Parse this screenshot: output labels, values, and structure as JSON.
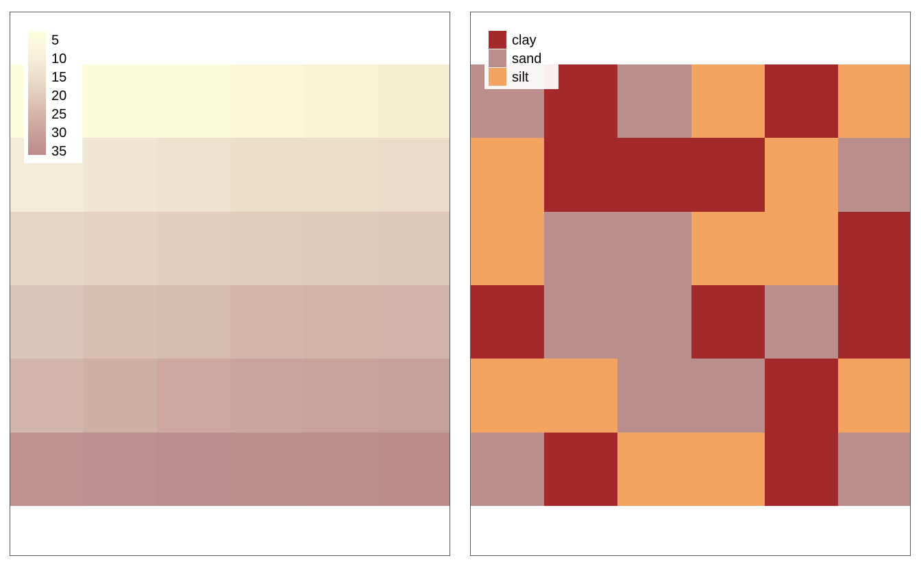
{
  "left_map": {
    "legend": {
      "labels": [
        "5",
        "10",
        "15",
        "20",
        "25",
        "30",
        "35"
      ],
      "ramp_colors": [
        "#fefee0",
        "#f8f3dc",
        "#eee3cf",
        "#e3cdbd",
        "#d4b5aa",
        "#c89f99",
        "#bc8b8c"
      ]
    },
    "rows": [
      [
        "#fdfddf",
        "#fcfcdc",
        "#fcfbdb",
        "#f9f6d9",
        "#f7f2d6",
        "#f4efd3"
      ],
      [
        "#f2ecd8",
        "#efe6d4",
        "#ede2cd",
        "#ebdfca",
        "#eadec9",
        "#e9dbc7"
      ],
      [
        "#e6d6c5",
        "#e5d2c2",
        "#e2cfbe",
        "#e0ccbb",
        "#dfcbb9",
        "#ddc8b7"
      ],
      [
        "#dcc5ba",
        "#d8bfb2",
        "#d5baae",
        "#d3b7aa",
        "#d2b4a7",
        "#d0b3a9"
      ],
      [
        "#d2b5ab",
        "#cfb0a4",
        "#cca8a0",
        "#c8a49e",
        "#c7a39c",
        "#c5a19d"
      ],
      [
        "#bf9190",
        "#bc8f90",
        "#ba8d8e",
        "#bb8e8e",
        "#bc8d8d",
        "#bc8b8c"
      ]
    ]
  },
  "right_map": {
    "legend": {
      "items": [
        {
          "label": "clay",
          "color": "#a3292a"
        },
        {
          "label": "sand",
          "color": "#bb8e8e"
        },
        {
          "label": "silt",
          "color": "#f3a461"
        }
      ]
    },
    "rows": [
      [
        "sand",
        "clay",
        "sand",
        "silt",
        "clay",
        "silt"
      ],
      [
        "silt",
        "clay",
        "clay",
        "clay",
        "silt",
        "sand"
      ],
      [
        "silt",
        "sand",
        "sand",
        "silt",
        "silt",
        "clay"
      ],
      [
        "clay",
        "sand",
        "sand",
        "clay",
        "sand",
        "clay"
      ],
      [
        "silt",
        "silt",
        "sand",
        "sand",
        "clay",
        "silt"
      ],
      [
        "sand",
        "clay",
        "silt",
        "silt",
        "clay",
        "sand"
      ]
    ]
  }
}
